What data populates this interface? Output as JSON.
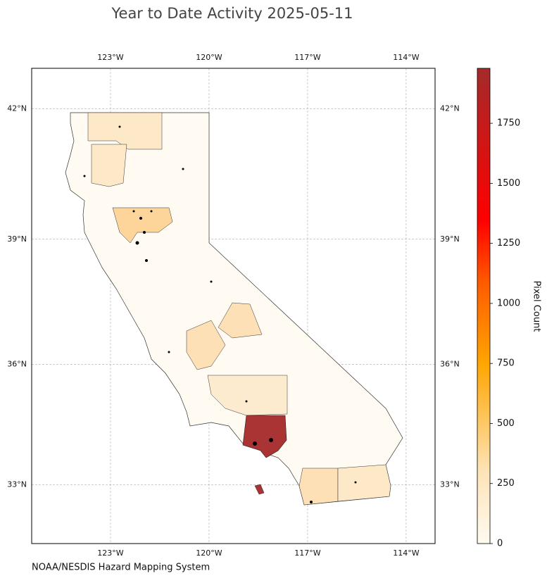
{
  "chart_data": {
    "type": "map",
    "title": "Year to Date Activity 2025-05-11",
    "attribution": "NOAA/NESDIS Hazard Mapping System",
    "xlim": [
      -125.4,
      -113.12
    ],
    "ylim": [
      31.5,
      42.9
    ],
    "xticks": [
      {
        "value": -123,
        "label": "123°W"
      },
      {
        "value": -120,
        "label": "120°W"
      },
      {
        "value": -117,
        "label": "117°W"
      },
      {
        "value": -114,
        "label": "114°W"
      }
    ],
    "yticks": [
      {
        "value": 42,
        "label": "42°N"
      },
      {
        "value": 39,
        "label": "39°N"
      },
      {
        "value": 36,
        "label": "36°N"
      },
      {
        "value": 33,
        "label": "33°N"
      }
    ],
    "grid": true,
    "colorbar": {
      "label": "Pixel Count",
      "lim": [
        0,
        1979
      ],
      "ticks": [
        0,
        250,
        500,
        750,
        1000,
        1250,
        1500,
        1750
      ]
    }
  }
}
